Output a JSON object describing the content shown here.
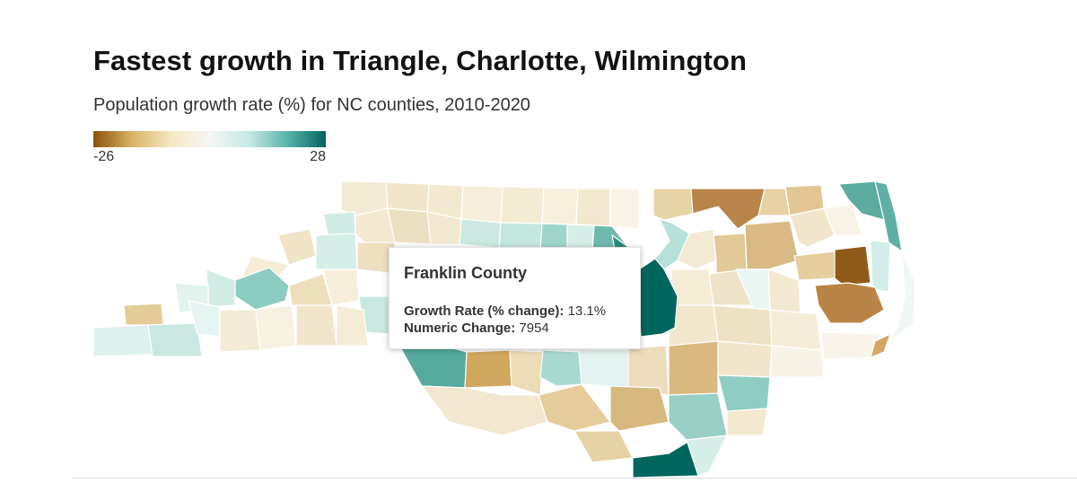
{
  "header": {
    "title": "Fastest growth in Triangle, Charlotte, Wilmington",
    "subtitle": "Population growth rate (%) for NC counties, 2010-2020"
  },
  "legend": {
    "min_label": "-26",
    "max_label": "28",
    "min": -26,
    "max": 28,
    "colors": [
      "#8c510a",
      "#d8b365",
      "#f6e8c3",
      "#f5f5f5",
      "#c7eae5",
      "#5ab4ac",
      "#01665e"
    ]
  },
  "tooltip": {
    "county": "Franklin County",
    "growth_label": "Growth Rate (% change):",
    "growth_value": "13.1%",
    "change_label": "Numeric Change:",
    "change_value": "7954"
  },
  "map": {
    "state": "North Carolina",
    "highlighted_county": "Franklin County",
    "highlight_color": "#01665e"
  }
}
